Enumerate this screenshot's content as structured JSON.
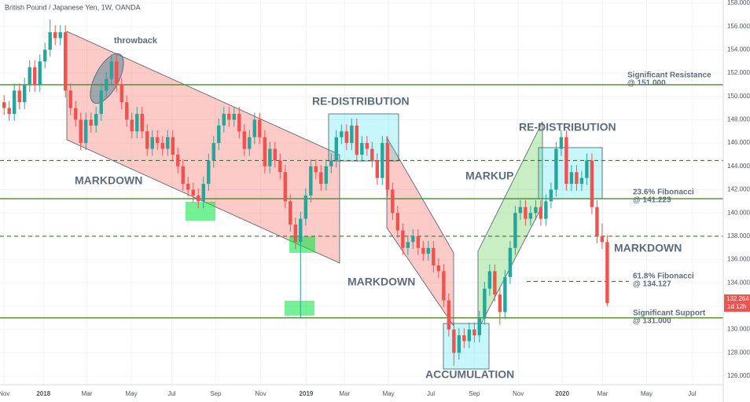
{
  "chart_data": {
    "type": "candlestick",
    "title": "British Pound / Japanese Yen, 1W, OANDA",
    "up_color": "#26a69a",
    "down_color": "#ef5350",
    "xlim": [
      -0.8,
      140.7
    ],
    "ylim": [
      125.26,
      158.27
    ],
    "xticks": [
      {
        "value": 0,
        "label": "Nov"
      },
      {
        "value": 7.7,
        "label": "2018"
      },
      {
        "value": 16.2,
        "label": "Mar"
      },
      {
        "value": 24.9,
        "label": "May"
      },
      {
        "value": 32.8,
        "label": "Jul"
      },
      {
        "value": 41.4,
        "label": "Sep"
      },
      {
        "value": 50.2,
        "label": "Nov"
      },
      {
        "value": 59.1,
        "label": "2019"
      },
      {
        "value": 66.6,
        "label": "Mar"
      },
      {
        "value": 75.2,
        "label": "May"
      },
      {
        "value": 83.5,
        "label": "Jul"
      },
      {
        "value": 92,
        "label": "Sep"
      },
      {
        "value": 100.6,
        "label": "Nov"
      },
      {
        "value": 109.2,
        "label": "2020"
      },
      {
        "value": 117.1,
        "label": "Mar"
      },
      {
        "value": 125.7,
        "label": "May"
      },
      {
        "value": 134.6,
        "label": "Jul"
      }
    ],
    "yticks": [
      {
        "value": 126,
        "label": "126.000"
      },
      {
        "value": 128,
        "label": "128.000"
      },
      {
        "value": 130,
        "label": "130.000"
      },
      {
        "value": 132,
        "label": "132.000"
      },
      {
        "value": 134,
        "label": "134.000"
      },
      {
        "value": 136,
        "label": "136.000"
      },
      {
        "value": 138,
        "label": "138.000"
      },
      {
        "value": 140,
        "label": "140.000"
      },
      {
        "value": 142,
        "label": "142.000"
      },
      {
        "value": 144,
        "label": "144.000"
      },
      {
        "value": 146,
        "label": "146.000"
      },
      {
        "value": 148,
        "label": "148.000"
      },
      {
        "value": 150,
        "label": "150.000"
      },
      {
        "value": 152,
        "label": "152.000"
      },
      {
        "value": 154,
        "label": "154.000"
      },
      {
        "value": 156,
        "label": "156.000"
      },
      {
        "value": 158,
        "label": "158.000"
      }
    ],
    "open": [
      149.5,
      149.0,
      148.5,
      150.5,
      149.5,
      151.0,
      152.5,
      151.0,
      153.0,
      154.0,
      155.5,
      155.0,
      155.5,
      150.5,
      149.0,
      148.0,
      146.0,
      148.0,
      147.5,
      148.5,
      150.5,
      151.5,
      153.0,
      151.0,
      149.5,
      148.0,
      147.0,
      148.5,
      147.0,
      145.5,
      146.5,
      146.0,
      145.5,
      146.5,
      145.0,
      144.0,
      142.5,
      142.0,
      141.5,
      141.0,
      142.5,
      144.5,
      146.0,
      147.5,
      148.5,
      148.0,
      148.5,
      147.0,
      145.5,
      146.5,
      148.0,
      146.5,
      144.0,
      145.5,
      144.5,
      143.5,
      141.0,
      139.0,
      137.5,
      139.5,
      141.5,
      144.0,
      143.5,
      142.5,
      144.0,
      144.5,
      146.5,
      147.0,
      146.0,
      147.5,
      145.0,
      146.0,
      145.5,
      144.5,
      143.0,
      146.0,
      142.0,
      140.0,
      138.5,
      137.0,
      137.5,
      138.0,
      137.0,
      136.5,
      137.0,
      135.5,
      135.0,
      132.5,
      130.0,
      128.0,
      129.5,
      129.0,
      130.0,
      129.5,
      131.0,
      133.5,
      135.0,
      133.0,
      131.5,
      134.5,
      137.0,
      140.0,
      140.5,
      139.5,
      140.0,
      140.5,
      139.5,
      141.0,
      142.0,
      145.5,
      146.5,
      142.5,
      143.5,
      142.5,
      143.0,
      144.5,
      140.5,
      138.0,
      137.5
    ],
    "high": [
      150.1,
      149.6,
      151.1,
      151.1,
      151.6,
      153.1,
      153.1,
      153.6,
      154.6,
      156.6,
      156.1,
      156.1,
      156.1,
      151.1,
      149.6,
      148.6,
      148.6,
      148.6,
      149.1,
      151.1,
      152.1,
      153.6,
      153.6,
      151.6,
      150.1,
      148.6,
      149.1,
      149.1,
      147.6,
      147.1,
      147.1,
      146.6,
      147.1,
      147.1,
      145.6,
      144.6,
      143.1,
      142.6,
      142.1,
      143.1,
      145.1,
      146.6,
      148.1,
      149.1,
      149.1,
      149.1,
      149.1,
      147.6,
      147.1,
      148.6,
      148.6,
      147.1,
      146.1,
      146.1,
      145.1,
      144.1,
      141.6,
      139.6,
      140.1,
      142.1,
      144.6,
      144.6,
      144.1,
      144.6,
      145.1,
      147.1,
      147.6,
      147.6,
      148.1,
      148.1,
      146.6,
      146.6,
      146.1,
      145.1,
      146.6,
      146.6,
      142.6,
      140.6,
      139.1,
      138.1,
      138.6,
      138.6,
      137.6,
      137.6,
      137.6,
      136.1,
      135.6,
      133.1,
      130.6,
      130.1,
      130.1,
      130.6,
      130.6,
      131.6,
      134.1,
      135.6,
      135.6,
      133.6,
      135.1,
      137.6,
      140.6,
      141.1,
      141.1,
      140.6,
      141.1,
      141.1,
      141.6,
      142.6,
      146.1,
      147.1,
      147.1,
      144.1,
      144.1,
      143.6,
      145.1,
      145.1,
      141.1,
      139.1,
      138.1
    ],
    "low": [
      148.4,
      147.9,
      147.9,
      148.9,
      148.9,
      150.4,
      150.4,
      150.4,
      152.4,
      153.4,
      154.4,
      154.4,
      149.9,
      148.4,
      147.4,
      145.4,
      145.4,
      146.9,
      146.9,
      147.9,
      149.9,
      150.9,
      150.4,
      148.9,
      147.4,
      146.4,
      146.4,
      146.4,
      144.9,
      144.9,
      145.4,
      144.9,
      144.9,
      144.4,
      143.4,
      141.9,
      141.4,
      140.9,
      140.4,
      140.4,
      141.9,
      143.9,
      145.4,
      146.9,
      147.4,
      147.4,
      146.4,
      144.9,
      144.9,
      145.9,
      145.9,
      143.4,
      143.4,
      143.9,
      142.9,
      140.4,
      138.4,
      136.9,
      131.0,
      138.9,
      140.9,
      142.9,
      141.9,
      141.9,
      143.4,
      143.9,
      145.9,
      145.4,
      145.4,
      144.4,
      144.4,
      144.9,
      143.9,
      142.4,
      142.4,
      141.4,
      139.4,
      137.9,
      136.4,
      136.4,
      136.9,
      136.4,
      135.9,
      135.9,
      134.9,
      134.4,
      131.9,
      129.4,
      126.9,
      127.4,
      128.4,
      128.4,
      128.9,
      128.9,
      130.4,
      132.9,
      132.4,
      130.4,
      130.9,
      133.9,
      136.4,
      139.4,
      138.9,
      138.9,
      139.4,
      138.9,
      138.9,
      140.4,
      141.4,
      144.9,
      141.9,
      141.9,
      141.9,
      141.9,
      142.4,
      139.9,
      137.4,
      136.9,
      132.0
    ],
    "close": [
      149.0,
      148.5,
      150.5,
      149.5,
      151.0,
      152.5,
      151.0,
      153.0,
      154.0,
      155.5,
      155.0,
      155.5,
      150.5,
      149.0,
      148.0,
      146.0,
      148.0,
      147.5,
      148.5,
      150.5,
      151.5,
      153.0,
      151.0,
      149.5,
      148.0,
      147.0,
      148.5,
      147.0,
      145.5,
      146.5,
      146.0,
      145.5,
      146.5,
      145.0,
      144.0,
      142.5,
      142.0,
      141.5,
      141.0,
      142.5,
      144.5,
      146.0,
      147.5,
      148.5,
      148.0,
      148.5,
      147.0,
      145.5,
      146.5,
      148.0,
      146.5,
      144.0,
      145.5,
      144.5,
      143.5,
      141.0,
      139.0,
      137.5,
      139.5,
      141.5,
      144.0,
      143.5,
      142.5,
      144.0,
      144.5,
      146.5,
      147.0,
      146.0,
      147.5,
      145.0,
      146.0,
      145.5,
      144.5,
      143.0,
      146.0,
      142.0,
      140.0,
      138.5,
      137.0,
      137.5,
      138.0,
      137.0,
      136.5,
      137.0,
      135.5,
      135.0,
      132.5,
      130.0,
      128.0,
      129.5,
      129.0,
      130.0,
      129.5,
      131.0,
      133.5,
      135.0,
      133.0,
      131.5,
      134.5,
      137.0,
      140.0,
      140.5,
      139.5,
      140.0,
      140.5,
      139.5,
      141.0,
      142.0,
      145.5,
      146.5,
      142.5,
      143.5,
      142.5,
      143.0,
      144.5,
      140.5,
      138.0,
      137.5,
      132.264
    ],
    "price_tag": {
      "value": 132.264,
      "label": "132.264"
    },
    "countdown": "1d 12h",
    "levels": [
      {
        "value": 151,
        "style": "solid",
        "color": "#4a8a2a",
        "label": [
          "Significant Resistance",
          "@ 151.000"
        ]
      },
      {
        "value": 144.5,
        "style": "dashed",
        "color": "#3d5a2a"
      },
      {
        "value": 141.223,
        "style": "solid",
        "color": "#4a8a2a",
        "label": [
          "23.6% Fibonacci",
          "@ 141.223"
        ]
      },
      {
        "value": 134.127,
        "style": "dashed",
        "color": "#3d5a2a",
        "label": [
          "61.8% Fibonacci",
          "@ 134.127"
        ]
      },
      {
        "value": 138,
        "style": "dashed",
        "color": "#3d5a2a"
      },
      {
        "value": 131,
        "style": "solid",
        "color": "#4a8a2a",
        "label": [
          "Significant Support",
          "@ 131.000"
        ]
      }
    ],
    "annotations": [
      "throwback",
      "MARKDOWN",
      "RE-DISTRIBUTION",
      "MARKDOWN",
      "ACCUMULATION",
      "MARKUP",
      "RE-DISTRIBUTION",
      "MARKDOWN"
    ]
  }
}
